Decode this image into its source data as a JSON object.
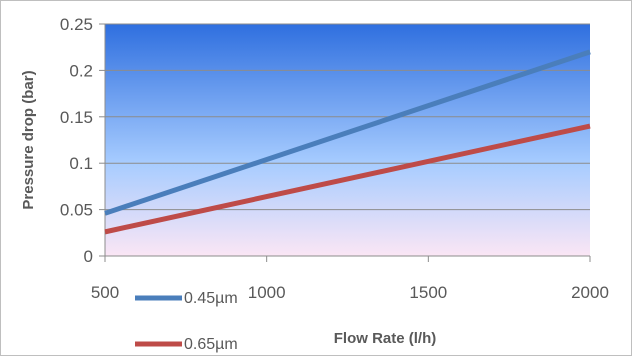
{
  "chart_data": {
    "type": "line",
    "title": "",
    "xlabel": "Flow Rate (l/h)",
    "ylabel": "Pressure drop (bar)",
    "xlim": [
      500,
      2000
    ],
    "ylim": [
      0,
      0.25
    ],
    "x_ticks": [
      "500",
      "1000",
      "1500",
      "2000"
    ],
    "y_ticks": [
      "0",
      "0.05",
      "0.1",
      "0.15",
      "0.2",
      "0.25"
    ],
    "grid": true,
    "legend_position": "bottom-left",
    "background": "gradient blue to pink",
    "series": [
      {
        "name": "0.45µm",
        "color": "#4a7ebb",
        "x": [
          500,
          2000
        ],
        "y": [
          0.046,
          0.22
        ]
      },
      {
        "name": "0.65µm",
        "color": "#be4b48",
        "x": [
          500,
          2000
        ],
        "y": [
          0.026,
          0.14
        ]
      }
    ]
  }
}
